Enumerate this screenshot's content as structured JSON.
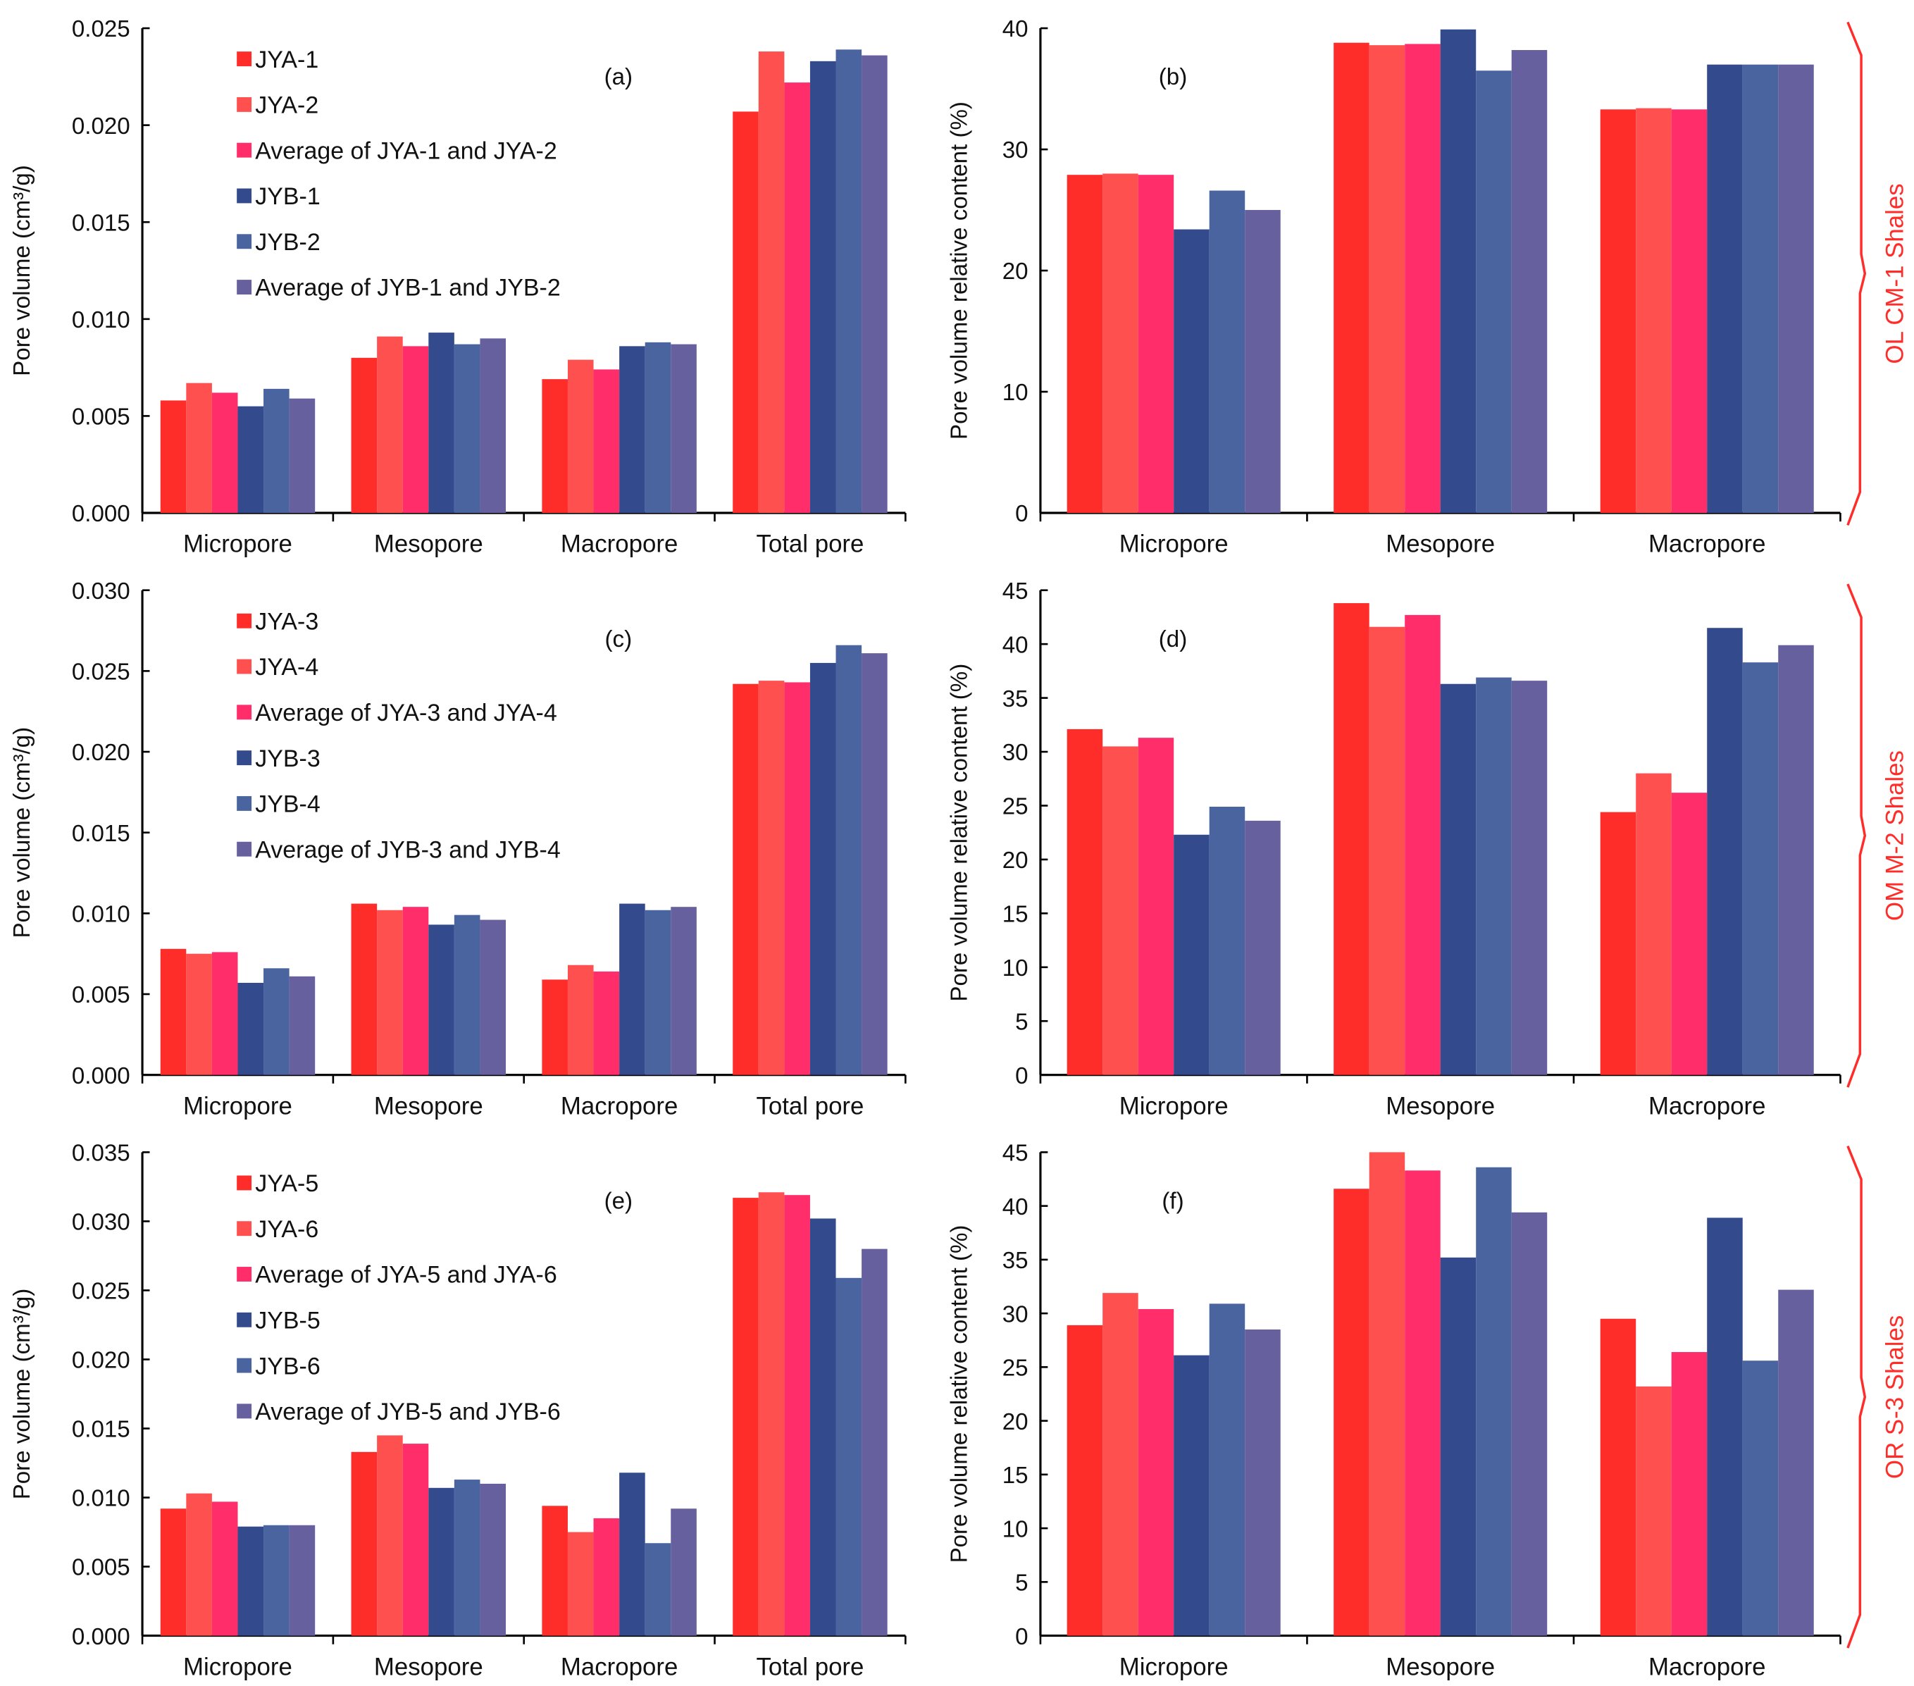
{
  "colors": [
    "#ff2d2a",
    "#ff5050",
    "#ff2d6a",
    "#334a8c",
    "#4a64a0",
    "#66619e"
  ],
  "group_labels": [
    "OL CM-1 Shales",
    "OM M-2 Shales",
    "OR S-3 Shales"
  ],
  "chart_data": [
    {
      "panel": "(a)",
      "type": "bar",
      "ylabel": "Pore volume (cm³/g)",
      "ylim": [
        0,
        0.025
      ],
      "yticks": [
        "0.000",
        "0.005",
        "0.010",
        "0.015",
        "0.020",
        "0.025"
      ],
      "categories": [
        "Micropore",
        "Mesopore",
        "Macropore",
        "Total pore"
      ],
      "series": [
        {
          "name": "JYA-1",
          "values": [
            0.0058,
            0.008,
            0.0069,
            0.0207
          ]
        },
        {
          "name": "JYA-2",
          "values": [
            0.0067,
            0.0091,
            0.0079,
            0.0238
          ]
        },
        {
          "name": "Average of JYA-1 and JYA-2",
          "values": [
            0.0062,
            0.0086,
            0.0074,
            0.0222
          ]
        },
        {
          "name": "JYB-1",
          "values": [
            0.0055,
            0.0093,
            0.0086,
            0.0233
          ]
        },
        {
          "name": "JYB-2",
          "values": [
            0.0064,
            0.0087,
            0.0088,
            0.0239
          ]
        },
        {
          "name": "Average of JYB-1 and JYB-2",
          "values": [
            0.0059,
            0.009,
            0.0087,
            0.0236
          ]
        }
      ]
    },
    {
      "panel": "(b)",
      "type": "bar",
      "ylabel": "Pore volume relative content (%)",
      "ylim": [
        0,
        40
      ],
      "yticks": [
        "0",
        "10",
        "20",
        "30",
        "40"
      ],
      "categories": [
        "Micropore",
        "Mesopore",
        "Macropore"
      ],
      "series": [
        {
          "name": "JYA-1",
          "values": [
            27.9,
            38.8,
            33.3
          ]
        },
        {
          "name": "JYA-2",
          "values": [
            28.0,
            38.6,
            33.4
          ]
        },
        {
          "name": "Average of JYA-1 and JYA-2",
          "values": [
            27.9,
            38.7,
            33.3
          ]
        },
        {
          "name": "JYB-1",
          "values": [
            23.4,
            39.9,
            37.0
          ]
        },
        {
          "name": "JYB-2",
          "values": [
            26.6,
            36.5,
            37.0
          ]
        },
        {
          "name": "Average of JYB-1 and JYB-2",
          "values": [
            25.0,
            38.2,
            37.0
          ]
        }
      ]
    },
    {
      "panel": "(c)",
      "type": "bar",
      "ylabel": "Pore volume (cm³/g)",
      "ylim": [
        0,
        0.03
      ],
      "yticks": [
        "0.000",
        "0.005",
        "0.010",
        "0.015",
        "0.020",
        "0.025",
        "0.030"
      ],
      "categories": [
        "Micropore",
        "Mesopore",
        "Macropore",
        "Total pore"
      ],
      "series": [
        {
          "name": "JYA-3",
          "values": [
            0.0078,
            0.0106,
            0.0059,
            0.0242
          ]
        },
        {
          "name": "JYA-4",
          "values": [
            0.0075,
            0.0102,
            0.0068,
            0.0244
          ]
        },
        {
          "name": "Average of JYA-3 and JYA-4",
          "values": [
            0.0076,
            0.0104,
            0.0064,
            0.0243
          ]
        },
        {
          "name": "JYB-3",
          "values": [
            0.0057,
            0.0093,
            0.0106,
            0.0255
          ]
        },
        {
          "name": "JYB-4",
          "values": [
            0.0066,
            0.0099,
            0.0102,
            0.0266
          ]
        },
        {
          "name": "Average of JYB-3 and JYB-4",
          "values": [
            0.0061,
            0.0096,
            0.0104,
            0.0261
          ]
        }
      ]
    },
    {
      "panel": "(d)",
      "type": "bar",
      "ylabel": "Pore volume relative content (%)",
      "ylim": [
        0,
        45
      ],
      "yticks": [
        "0",
        "5",
        "10",
        "15",
        "20",
        "25",
        "30",
        "35",
        "40",
        "45"
      ],
      "categories": [
        "Micropore",
        "Mesopore",
        "Macropore"
      ],
      "series": [
        {
          "name": "JYA-3",
          "values": [
            32.1,
            43.8,
            24.4
          ]
        },
        {
          "name": "JYA-4",
          "values": [
            30.5,
            41.6,
            28.0
          ]
        },
        {
          "name": "Average of JYA-3 and JYA-4",
          "values": [
            31.3,
            42.7,
            26.2
          ]
        },
        {
          "name": "JYB-3",
          "values": [
            22.3,
            36.3,
            41.5
          ]
        },
        {
          "name": "JYB-4",
          "values": [
            24.9,
            36.9,
            38.3
          ]
        },
        {
          "name": "Average of JYB-3 and JYB-4",
          "values": [
            23.6,
            36.6,
            39.9
          ]
        }
      ]
    },
    {
      "panel": "(e)",
      "type": "bar",
      "ylabel": "Pore volume (cm³/g)",
      "ylim": [
        0,
        0.035
      ],
      "yticks": [
        "0.000",
        "0.005",
        "0.010",
        "0.015",
        "0.020",
        "0.025",
        "0.030",
        "0.035"
      ],
      "categories": [
        "Micropore",
        "Mesopore",
        "Macropore",
        "Total pore"
      ],
      "series": [
        {
          "name": "JYA-5",
          "values": [
            0.0092,
            0.0133,
            0.0094,
            0.0317
          ]
        },
        {
          "name": "JYA-6",
          "values": [
            0.0103,
            0.0145,
            0.0075,
            0.0321
          ]
        },
        {
          "name": "Average of JYA-5 and JYA-6",
          "values": [
            0.0097,
            0.0139,
            0.0085,
            0.0319
          ]
        },
        {
          "name": "JYB-5",
          "values": [
            0.0079,
            0.0107,
            0.0118,
            0.0302
          ]
        },
        {
          "name": "JYB-6",
          "values": [
            0.008,
            0.0113,
            0.0067,
            0.0259
          ]
        },
        {
          "name": "Average of JYB-5 and JYB-6",
          "values": [
            0.008,
            0.011,
            0.0092,
            0.028
          ]
        }
      ]
    },
    {
      "panel": "(f)",
      "type": "bar",
      "ylabel": "Pore volume relative content (%)",
      "ylim": [
        0,
        45
      ],
      "yticks": [
        "0",
        "5",
        "10",
        "15",
        "20",
        "25",
        "30",
        "35",
        "40",
        "45"
      ],
      "categories": [
        "Micropore",
        "Mesopore",
        "Macropore"
      ],
      "series": [
        {
          "name": "JYA-5",
          "values": [
            28.9,
            41.6,
            29.5
          ]
        },
        {
          "name": "JYA-6",
          "values": [
            31.9,
            45.0,
            23.2
          ]
        },
        {
          "name": "Average of JYA-5 and JYA-6",
          "values": [
            30.4,
            43.3,
            26.4
          ]
        },
        {
          "name": "JYB-5",
          "values": [
            26.1,
            35.2,
            38.9
          ]
        },
        {
          "name": "JYB-6",
          "values": [
            30.9,
            43.6,
            25.6
          ]
        },
        {
          "name": "Average of JYB-5 and JYB-6",
          "values": [
            28.5,
            39.4,
            32.2
          ]
        }
      ]
    }
  ]
}
